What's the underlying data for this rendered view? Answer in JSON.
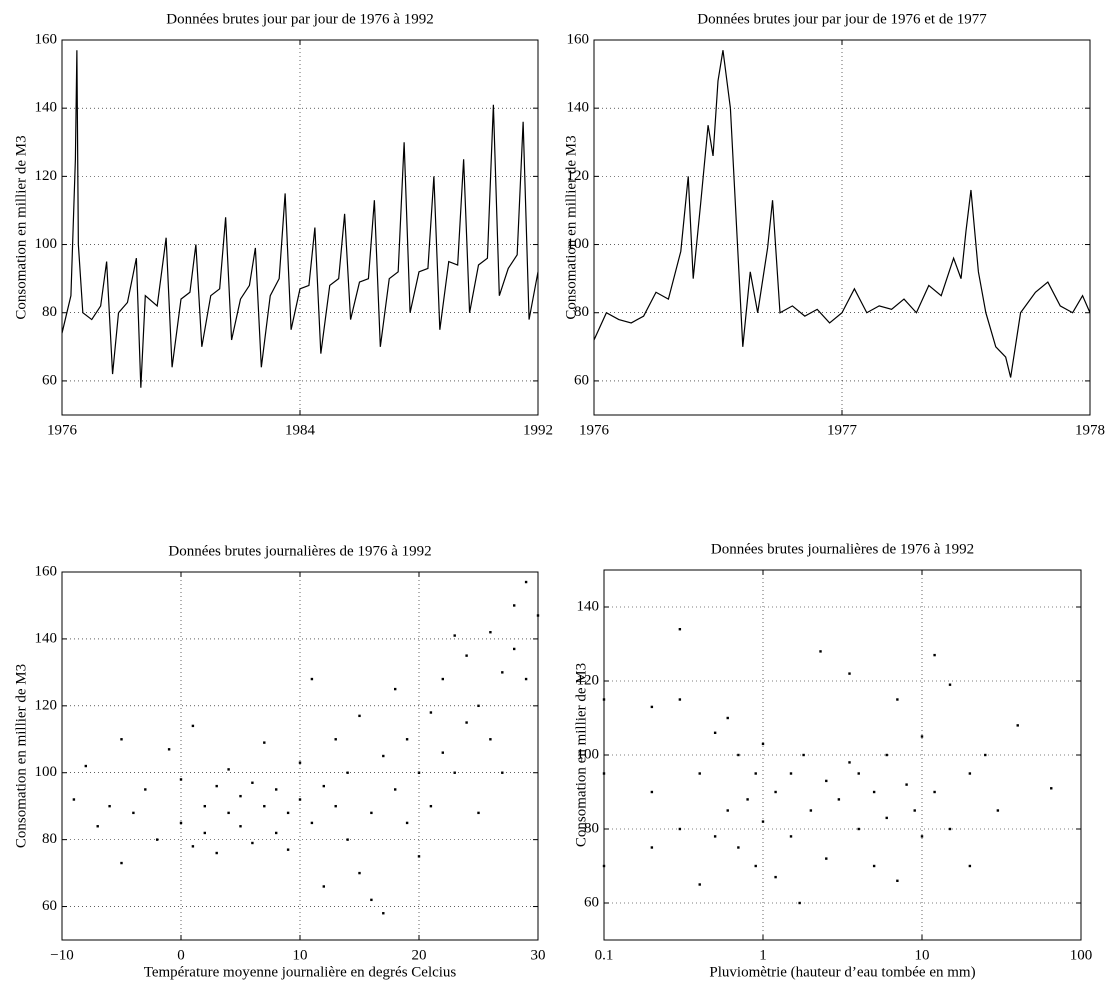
{
  "chart_data": [
    {
      "type": "line",
      "title": "Données brutes jour par jour de 1976 à 1992",
      "y_label": "Consomation en millier de M3",
      "color": "#000000",
      "grid": true,
      "x": [
        1976.0,
        1976.3,
        1976.45,
        1976.5,
        1976.55,
        1976.7,
        1977.0,
        1977.3,
        1977.5,
        1977.7,
        1977.9,
        1978.2,
        1978.5,
        1978.65,
        1978.8,
        1979.2,
        1979.5,
        1979.7,
        1980.0,
        1980.3,
        1980.5,
        1980.7,
        1981.0,
        1981.3,
        1981.5,
        1981.7,
        1982.0,
        1982.3,
        1982.5,
        1982.7,
        1983.0,
        1983.3,
        1983.5,
        1983.7,
        1984.0,
        1984.3,
        1984.5,
        1984.7,
        1985.0,
        1985.3,
        1985.5,
        1985.7,
        1986.0,
        1986.3,
        1986.5,
        1986.7,
        1987.0,
        1987.3,
        1987.5,
        1987.7,
        1988.0,
        1988.3,
        1988.5,
        1988.7,
        1989.0,
        1989.3,
        1989.5,
        1989.7,
        1990.0,
        1990.3,
        1990.5,
        1990.7,
        1991.0,
        1991.3,
        1991.5,
        1991.7,
        1992.0
      ],
      "values": [
        74,
        85,
        125,
        157,
        100,
        80,
        78,
        82,
        95,
        62,
        80,
        83,
        96,
        58,
        85,
        82,
        102,
        64,
        84,
        86,
        100,
        70,
        85,
        87,
        108,
        72,
        84,
        88,
        99,
        64,
        85,
        90,
        115,
        75,
        87,
        88,
        105,
        68,
        88,
        90,
        109,
        78,
        89,
        90,
        113,
        70,
        90,
        92,
        130,
        80,
        92,
        93,
        120,
        75,
        95,
        94,
        125,
        80,
        94,
        96,
        141,
        85,
        93,
        97,
        136,
        78,
        92
      ],
      "xlim": [
        1976,
        1992
      ],
      "xticks": [
        1976,
        1984,
        1992
      ],
      "ylim": [
        50,
        160
      ],
      "yticks": [
        60,
        80,
        100,
        120,
        140,
        160
      ]
    },
    {
      "type": "line",
      "title": "Données brutes jour par jour de 1976 et de 1977",
      "y_label": "Consomation en millier de M3",
      "color": "#000000",
      "grid": true,
      "x": [
        1976.0,
        1976.05,
        1976.1,
        1976.15,
        1976.2,
        1976.25,
        1976.3,
        1976.35,
        1976.38,
        1976.4,
        1976.43,
        1976.46,
        1976.48,
        1976.5,
        1976.52,
        1976.55,
        1976.58,
        1976.6,
        1976.63,
        1976.66,
        1976.7,
        1976.72,
        1976.75,
        1976.8,
        1976.85,
        1976.9,
        1976.95,
        1977.0,
        1977.05,
        1977.1,
        1977.15,
        1977.2,
        1977.25,
        1977.3,
        1977.35,
        1977.4,
        1977.45,
        1977.48,
        1977.5,
        1977.52,
        1977.55,
        1977.58,
        1977.62,
        1977.66,
        1977.68,
        1977.72,
        1977.78,
        1977.83,
        1977.88,
        1977.93,
        1977.97,
        1978.0
      ],
      "values": [
        72,
        80,
        78,
        77,
        79,
        86,
        84,
        98,
        120,
        90,
        112,
        135,
        126,
        148,
        157,
        140,
        98,
        70,
        92,
        80,
        99,
        113,
        80,
        82,
        79,
        81,
        77,
        80,
        87,
        80,
        82,
        81,
        84,
        80,
        88,
        85,
        96,
        90,
        104,
        116,
        92,
        80,
        70,
        67,
        61,
        80,
        86,
        89,
        82,
        80,
        85,
        80
      ],
      "xlim": [
        1976,
        1978
      ],
      "xticks": [
        1976,
        1977,
        1978
      ],
      "ylim": [
        50,
        160
      ],
      "yticks": [
        60,
        80,
        100,
        120,
        140,
        160
      ]
    },
    {
      "type": "scatter",
      "title": "Données brutes journalières de 1976 à 1992",
      "x_label": "Température moyenne journalière en degrés Celcius",
      "y_label": "Consomation en millier de M3",
      "color": "#000000",
      "grid": true,
      "x": [
        -9,
        -8,
        -7,
        -6,
        -5,
        -5,
        -4,
        -3,
        -2,
        -1,
        0,
        0,
        1,
        1,
        2,
        2,
        3,
        3,
        4,
        4,
        5,
        5,
        6,
        6,
        7,
        7,
        8,
        8,
        9,
        9,
        10,
        10,
        11,
        11,
        12,
        12,
        13,
        13,
        14,
        14,
        15,
        15,
        16,
        16,
        17,
        17,
        18,
        18,
        19,
        19,
        20,
        20,
        21,
        21,
        22,
        22,
        23,
        23,
        24,
        24,
        25,
        25,
        26,
        26,
        27,
        27,
        28,
        28,
        29,
        29,
        30
      ],
      "values": [
        92,
        102,
        84,
        90,
        110,
        73,
        88,
        95,
        80,
        107,
        85,
        98,
        114,
        78,
        90,
        82,
        96,
        76,
        88,
        101,
        84,
        93,
        79,
        97,
        90,
        109,
        82,
        95,
        88,
        77,
        92,
        103,
        85,
        128,
        96,
        66,
        90,
        110,
        80,
        100,
        70,
        117,
        88,
        62,
        105,
        58,
        95,
        125,
        85,
        110,
        100,
        75,
        118,
        90,
        106,
        128,
        141,
        100,
        135,
        115,
        120,
        88,
        142,
        110,
        130,
        100,
        150,
        137,
        157,
        128,
        147
      ],
      "xlim": [
        -10,
        30
      ],
      "xticks": [
        {
          "value": -10,
          "label": "−10"
        },
        0,
        10,
        20,
        30
      ],
      "ylim": [
        50,
        160
      ],
      "yticks": [
        60,
        80,
        100,
        120,
        140,
        160
      ]
    },
    {
      "type": "scatter",
      "title": "Données brutes journalières de 1976 à 1992",
      "x_label": "Pluviomètrie (hauteur d’eau tombée en mm)",
      "y_label": "Consomation en millier de M3",
      "color": "#000000",
      "grid": true,
      "xscale": "log",
      "x": [
        0.1,
        0.1,
        0.1,
        0.2,
        0.2,
        0.2,
        0.3,
        0.3,
        0.3,
        0.4,
        0.4,
        0.5,
        0.5,
        0.6,
        0.6,
        0.7,
        0.7,
        0.8,
        0.9,
        0.9,
        1,
        1,
        1.2,
        1.2,
        1.5,
        1.5,
        1.7,
        1.8,
        2,
        2.3,
        2.5,
        2.5,
        3,
        3.5,
        3.5,
        4,
        4,
        5,
        5,
        6,
        6,
        7,
        7,
        8,
        9,
        10,
        10,
        12,
        12,
        15,
        15,
        20,
        20,
        25,
        30,
        40,
        65
      ],
      "values": [
        70,
        95,
        115,
        75,
        90,
        113,
        80,
        115,
        134,
        65,
        95,
        78,
        106,
        85,
        110,
        75,
        100,
        88,
        70,
        95,
        82,
        103,
        90,
        67,
        95,
        78,
        60,
        100,
        85,
        128,
        93,
        72,
        88,
        122,
        98,
        80,
        95,
        90,
        70,
        100,
        83,
        115,
        66,
        92,
        85,
        105,
        78,
        127,
        90,
        119,
        80,
        95,
        70,
        100,
        85,
        108,
        91
      ],
      "xlim": [
        0.1,
        100
      ],
      "xticks": [
        0.1,
        1,
        10,
        100
      ],
      "ylim": [
        50,
        150
      ],
      "yticks": [
        60,
        80,
        100,
        120,
        140
      ]
    }
  ]
}
